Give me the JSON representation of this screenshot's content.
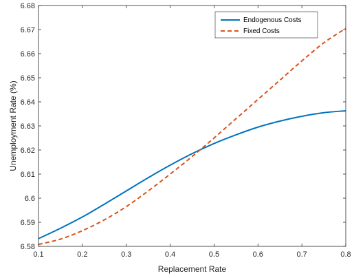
{
  "chart_data": {
    "type": "line",
    "title": "",
    "xlabel": "Replacement Rate",
    "ylabel": "Unemployment Rate (%)",
    "xlim": [
      0.1,
      0.8
    ],
    "ylim": [
      6.58,
      6.68
    ],
    "xticks": [
      "0.1",
      "0.2",
      "0.3",
      "0.4",
      "0.5",
      "0.6",
      "0.7",
      "0.8"
    ],
    "yticks": [
      "6.58",
      "6.59",
      "6.6",
      "6.61",
      "6.62",
      "6.63",
      "6.64",
      "6.65",
      "6.66",
      "6.67",
      "6.68"
    ],
    "grid": false,
    "legend_position": "top-right",
    "x": [
      0.1,
      0.15,
      0.2,
      0.25,
      0.3,
      0.35,
      0.4,
      0.45,
      0.5,
      0.55,
      0.6,
      0.65,
      0.7,
      0.75,
      0.8
    ],
    "series": [
      {
        "name": "Endogenous Costs",
        "color": "#0072BD",
        "style": "solid",
        "values": [
          6.5832,
          6.5875,
          6.5922,
          6.5975,
          6.603,
          6.6085,
          6.6137,
          6.6185,
          6.6227,
          6.6263,
          6.6295,
          6.632,
          6.634,
          6.6355,
          6.6363
        ]
      },
      {
        "name": "Fixed Costs",
        "color": "#D95319",
        "style": "dashed",
        "values": [
          6.5808,
          6.583,
          6.5865,
          6.591,
          6.5965,
          6.603,
          6.61,
          6.6173,
          6.625,
          6.633,
          6.641,
          6.649,
          6.657,
          6.6645,
          6.6705
        ]
      }
    ]
  }
}
